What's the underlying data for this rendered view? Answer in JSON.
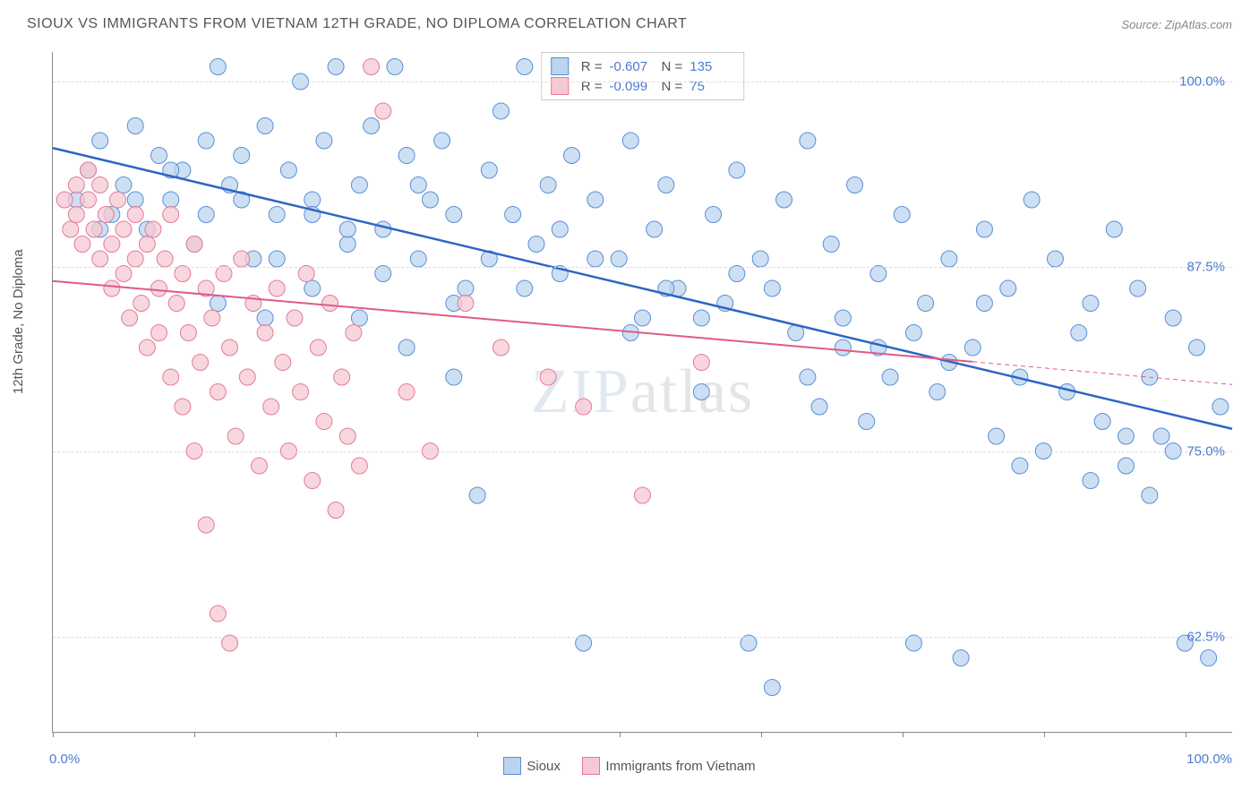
{
  "header": {
    "title": "SIOUX VS IMMIGRANTS FROM VIETNAM 12TH GRADE, NO DIPLOMA CORRELATION CHART",
    "source": "Source: ZipAtlas.com"
  },
  "y_axis": {
    "label": "12th Grade, No Diploma",
    "ticks": [
      {
        "value": 100.0,
        "label": "100.0%",
        "pos_pct_from_top": 4
      },
      {
        "value": 87.5,
        "label": "87.5%",
        "pos_pct_from_top": 30
      },
      {
        "value": 75.0,
        "label": "75.0%",
        "pos_pct_from_top": 56
      },
      {
        "value": 62.5,
        "label": "62.5%",
        "pos_pct_from_top": 82
      }
    ]
  },
  "x_axis": {
    "min_label": "0.0%",
    "max_label": "100.0%",
    "tick_positions_pct": [
      0,
      12,
      24,
      36,
      48,
      60,
      72,
      84,
      96
    ]
  },
  "watermark": {
    "bold": "ZIP",
    "thin": "atlas"
  },
  "series": [
    {
      "name": "Sioux",
      "legend_label": "Sioux",
      "marker_fill": "#bcd4ef",
      "marker_stroke": "#5a8fd6",
      "marker_opacity": 0.75,
      "marker_radius": 9,
      "line_color": "#2d66c4",
      "line_width": 2.5,
      "legend_swatch_fill": "#bcd4ef",
      "legend_swatch_stroke": "#5a8fd6",
      "R": "-0.607",
      "N": "135",
      "trend": {
        "x1_pct": 0,
        "y1_val": 95.5,
        "x2_pct": 100,
        "y2_val": 76.5,
        "dashed_from_pct": null
      },
      "points": [
        [
          2,
          92
        ],
        [
          3,
          94
        ],
        [
          4,
          96
        ],
        [
          5,
          91
        ],
        [
          6,
          93
        ],
        [
          7,
          97
        ],
        [
          8,
          90
        ],
        [
          9,
          95
        ],
        [
          10,
          92
        ],
        [
          11,
          94
        ],
        [
          12,
          89
        ],
        [
          13,
          96
        ],
        [
          14,
          101
        ],
        [
          15,
          93
        ],
        [
          16,
          95
        ],
        [
          17,
          88
        ],
        [
          18,
          97
        ],
        [
          19,
          91
        ],
        [
          20,
          94
        ],
        [
          21,
          100
        ],
        [
          22,
          92
        ],
        [
          23,
          96
        ],
        [
          24,
          101
        ],
        [
          25,
          89
        ],
        [
          26,
          93
        ],
        [
          27,
          97
        ],
        [
          28,
          90
        ],
        [
          29,
          101
        ],
        [
          30,
          95
        ],
        [
          31,
          88
        ],
        [
          32,
          92
        ],
        [
          33,
          96
        ],
        [
          34,
          85
        ],
        [
          35,
          86
        ],
        [
          36,
          72
        ],
        [
          37,
          94
        ],
        [
          38,
          98
        ],
        [
          39,
          91
        ],
        [
          40,
          101
        ],
        [
          41,
          89
        ],
        [
          42,
          93
        ],
        [
          43,
          87
        ],
        [
          44,
          95
        ],
        [
          45,
          62
        ],
        [
          46,
          92
        ],
        [
          47,
          101
        ],
        [
          48,
          88
        ],
        [
          49,
          96
        ],
        [
          50,
          84
        ],
        [
          51,
          90
        ],
        [
          52,
          93
        ],
        [
          53,
          86
        ],
        [
          54,
          101
        ],
        [
          55,
          79
        ],
        [
          56,
          91
        ],
        [
          57,
          85
        ],
        [
          58,
          94
        ],
        [
          59,
          62
        ],
        [
          60,
          88
        ],
        [
          61,
          59
        ],
        [
          62,
          92
        ],
        [
          63,
          83
        ],
        [
          64,
          96
        ],
        [
          65,
          78
        ],
        [
          66,
          89
        ],
        [
          67,
          82
        ],
        [
          68,
          93
        ],
        [
          69,
          77
        ],
        [
          70,
          87
        ],
        [
          71,
          80
        ],
        [
          72,
          91
        ],
        [
          73,
          62
        ],
        [
          74,
          85
        ],
        [
          75,
          79
        ],
        [
          76,
          88
        ],
        [
          77,
          61
        ],
        [
          78,
          82
        ],
        [
          79,
          90
        ],
        [
          80,
          76
        ],
        [
          81,
          86
        ],
        [
          82,
          80
        ],
        [
          83,
          92
        ],
        [
          84,
          75
        ],
        [
          85,
          88
        ],
        [
          86,
          79
        ],
        [
          87,
          83
        ],
        [
          88,
          85
        ],
        [
          89,
          77
        ],
        [
          90,
          90
        ],
        [
          91,
          74
        ],
        [
          92,
          86
        ],
        [
          93,
          80
        ],
        [
          94,
          76
        ],
        [
          95,
          84
        ],
        [
          96,
          62
        ],
        [
          97,
          82
        ],
        [
          98,
          61
        ],
        [
          99,
          78
        ],
        [
          93,
          72
        ],
        [
          95,
          75
        ],
        [
          88,
          73
        ],
        [
          91,
          76
        ],
        [
          82,
          74
        ],
        [
          79,
          85
        ],
        [
          76,
          81
        ],
        [
          73,
          83
        ],
        [
          70,
          82
        ],
        [
          67,
          84
        ],
        [
          64,
          80
        ],
        [
          61,
          86
        ],
        [
          58,
          87
        ],
        [
          55,
          84
        ],
        [
          52,
          86
        ],
        [
          49,
          83
        ],
        [
          46,
          88
        ],
        [
          43,
          90
        ],
        [
          40,
          86
        ],
        [
          37,
          88
        ],
        [
          34,
          91
        ],
        [
          31,
          93
        ],
        [
          28,
          87
        ],
        [
          25,
          90
        ],
        [
          22,
          91
        ],
        [
          19,
          88
        ],
        [
          16,
          92
        ],
        [
          13,
          91
        ],
        [
          10,
          94
        ],
        [
          7,
          92
        ],
        [
          4,
          90
        ],
        [
          14,
          85
        ],
        [
          18,
          84
        ],
        [
          22,
          86
        ],
        [
          26,
          84
        ],
        [
          30,
          82
        ],
        [
          34,
          80
        ]
      ]
    },
    {
      "name": "Immigrants from Vietnam",
      "legend_label": "Immigrants from Vietnam",
      "marker_fill": "#f6c8d3",
      "marker_stroke": "#e37a9a",
      "marker_opacity": 0.75,
      "marker_radius": 9,
      "line_color": "#e05a87",
      "line_width": 2,
      "legend_swatch_fill": "#f6c8d3",
      "legend_swatch_stroke": "#e37a9a",
      "R": "-0.099",
      "N": "75",
      "trend": {
        "x1_pct": 0,
        "y1_val": 86.5,
        "x2_pct": 100,
        "y2_val": 79.5,
        "dashed_from_pct": 78
      },
      "points": [
        [
          1,
          92
        ],
        [
          1.5,
          90
        ],
        [
          2,
          93
        ],
        [
          2,
          91
        ],
        [
          2.5,
          89
        ],
        [
          3,
          92
        ],
        [
          3,
          94
        ],
        [
          3.5,
          90
        ],
        [
          4,
          88
        ],
        [
          4,
          93
        ],
        [
          4.5,
          91
        ],
        [
          5,
          89
        ],
        [
          5,
          86
        ],
        [
          5.5,
          92
        ],
        [
          6,
          90
        ],
        [
          6,
          87
        ],
        [
          6.5,
          84
        ],
        [
          7,
          91
        ],
        [
          7,
          88
        ],
        [
          7.5,
          85
        ],
        [
          8,
          89
        ],
        [
          8,
          82
        ],
        [
          8.5,
          90
        ],
        [
          9,
          86
        ],
        [
          9,
          83
        ],
        [
          9.5,
          88
        ],
        [
          10,
          91
        ],
        [
          10,
          80
        ],
        [
          10.5,
          85
        ],
        [
          11,
          87
        ],
        [
          11,
          78
        ],
        [
          11.5,
          83
        ],
        [
          12,
          89
        ],
        [
          12,
          75
        ],
        [
          12.5,
          81
        ],
        [
          13,
          86
        ],
        [
          13,
          70
        ],
        [
          13.5,
          84
        ],
        [
          14,
          79
        ],
        [
          14,
          64
        ],
        [
          14.5,
          87
        ],
        [
          15,
          82
        ],
        [
          15,
          62
        ],
        [
          15.5,
          76
        ],
        [
          16,
          88
        ],
        [
          16.5,
          80
        ],
        [
          17,
          85
        ],
        [
          17.5,
          74
        ],
        [
          18,
          83
        ],
        [
          18.5,
          78
        ],
        [
          19,
          86
        ],
        [
          19.5,
          81
        ],
        [
          20,
          75
        ],
        [
          20.5,
          84
        ],
        [
          21,
          79
        ],
        [
          21.5,
          87
        ],
        [
          22,
          73
        ],
        [
          22.5,
          82
        ],
        [
          23,
          77
        ],
        [
          23.5,
          85
        ],
        [
          24,
          71
        ],
        [
          24.5,
          80
        ],
        [
          25,
          76
        ],
        [
          25.5,
          83
        ],
        [
          26,
          74
        ],
        [
          27,
          101
        ],
        [
          28,
          98
        ],
        [
          30,
          79
        ],
        [
          32,
          75
        ],
        [
          35,
          85
        ],
        [
          38,
          82
        ],
        [
          42,
          80
        ],
        [
          45,
          78
        ],
        [
          50,
          72
        ],
        [
          55,
          81
        ]
      ]
    }
  ],
  "y_domain": {
    "min": 56,
    "max": 102
  },
  "colors": {
    "axis": "#888888",
    "grid": "#dddddd",
    "text": "#555555",
    "value_text": "#4a7bd0"
  }
}
